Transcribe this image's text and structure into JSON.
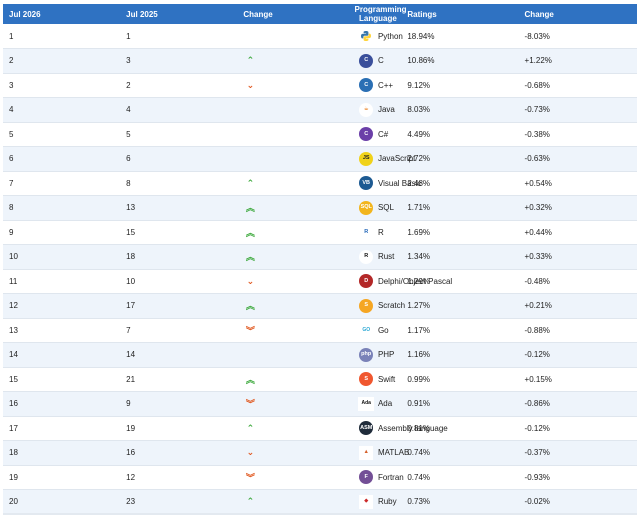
{
  "headers": {
    "rank_now": "Jul 2026",
    "rank_prev": "Jul 2025",
    "change": "Change",
    "language": "Programming Language",
    "ratings": "Ratings",
    "delta": "Change"
  },
  "rows": [
    {
      "rank": "1",
      "prev": "1",
      "trend": "none",
      "logo": "python-logo",
      "logo_text": "",
      "logo_color": "#3b73a8",
      "language": "Python",
      "rating": "18.94%",
      "delta": "-8.03%"
    },
    {
      "rank": "2",
      "prev": "3",
      "trend": "up",
      "logo": "c-logo",
      "logo_text": "C",
      "logo_color": "#3a4f9b",
      "language": "C",
      "rating": "10.86%",
      "delta": "+1.22%"
    },
    {
      "rank": "3",
      "prev": "2",
      "trend": "down",
      "logo": "cpp-logo",
      "logo_text": "C",
      "logo_color": "#2a6fb4",
      "language": "C++",
      "rating": "9.12%",
      "delta": "-0.68%"
    },
    {
      "rank": "4",
      "prev": "4",
      "trend": "none",
      "logo": "java-logo",
      "logo_text": "☕",
      "logo_color": "#ffffff",
      "language": "Java",
      "rating": "8.03%",
      "delta": "-0.73%"
    },
    {
      "rank": "5",
      "prev": "5",
      "trend": "none",
      "logo": "csharp-logo",
      "logo_text": "C",
      "logo_color": "#6b3fa8",
      "language": "C#",
      "rating": "4.49%",
      "delta": "-0.38%"
    },
    {
      "rank": "6",
      "prev": "6",
      "trend": "none",
      "logo": "javascript-logo",
      "logo_text": "JS",
      "logo_color": "#f0d21a",
      "language": "JavaScript",
      "rating": "2.72%",
      "delta": "-0.63%"
    },
    {
      "rank": "7",
      "prev": "8",
      "trend": "up",
      "logo": "visual-basic-logo",
      "logo_text": "VB",
      "logo_color": "#1d5a92",
      "language": "Visual Basic",
      "rating": "2.48%",
      "delta": "+0.54%"
    },
    {
      "rank": "8",
      "prev": "13",
      "trend": "double-up",
      "logo": "sql-logo",
      "logo_text": "SQL",
      "logo_color": "#f2b51d",
      "language": "SQL",
      "rating": "1.71%",
      "delta": "+0.32%"
    },
    {
      "rank": "9",
      "prev": "15",
      "trend": "double-up",
      "logo": "r-logo",
      "logo_text": "R",
      "logo_color": "#6f7d91",
      "language": "R",
      "rating": "1.69%",
      "delta": "+0.44%"
    },
    {
      "rank": "10",
      "prev": "18",
      "trend": "double-up",
      "logo": "rust-logo",
      "logo_text": "R",
      "logo_color": "#111111",
      "language": "Rust",
      "rating": "1.34%",
      "delta": "+0.33%"
    },
    {
      "rank": "11",
      "prev": "10",
      "trend": "down",
      "logo": "delphi-logo",
      "logo_text": "D",
      "logo_color": "#b32828",
      "language": "Delphi/Object Pascal",
      "rating": "1.29%",
      "delta": "-0.48%"
    },
    {
      "rank": "12",
      "prev": "17",
      "trend": "double-up",
      "logo": "scratch-logo",
      "logo_text": "S",
      "logo_color": "#f5a623",
      "language": "Scratch",
      "rating": "1.27%",
      "delta": "+0.21%"
    },
    {
      "rank": "13",
      "prev": "7",
      "trend": "double-down",
      "logo": "go-logo",
      "logo_text": "GO",
      "logo_color": "#ffffff",
      "language": "Go",
      "rating": "1.17%",
      "delta": "-0.88%"
    },
    {
      "rank": "14",
      "prev": "14",
      "trend": "none",
      "logo": "php-logo",
      "logo_text": "php",
      "logo_color": "#7a82b8",
      "language": "PHP",
      "rating": "1.16%",
      "delta": "-0.12%"
    },
    {
      "rank": "15",
      "prev": "21",
      "trend": "double-up",
      "logo": "swift-logo",
      "logo_text": "S",
      "logo_color": "#f0572f",
      "language": "Swift",
      "rating": "0.99%",
      "delta": "+0.15%"
    },
    {
      "rank": "16",
      "prev": "9",
      "trend": "double-down",
      "logo": "ada-logo",
      "logo_text": "Ada",
      "logo_color": "#ffffff",
      "language": "Ada",
      "rating": "0.91%",
      "delta": "-0.86%"
    },
    {
      "rank": "17",
      "prev": "19",
      "trend": "up",
      "logo": "assembly-logo",
      "logo_text": "ASM",
      "logo_color": "#1f2b3a",
      "language": "Assembly language",
      "rating": "0.81%",
      "delta": "-0.12%"
    },
    {
      "rank": "18",
      "prev": "16",
      "trend": "down",
      "logo": "matlab-logo",
      "logo_text": "▲",
      "logo_color": "#ffffff",
      "language": "MATLAB",
      "rating": "0.74%",
      "delta": "-0.37%"
    },
    {
      "rank": "19",
      "prev": "12",
      "trend": "double-down",
      "logo": "fortran-logo",
      "logo_text": "F",
      "logo_color": "#734f96",
      "language": "Fortran",
      "rating": "0.74%",
      "delta": "-0.93%"
    },
    {
      "rank": "20",
      "prev": "23",
      "trend": "up",
      "logo": "ruby-logo",
      "logo_text": "◆",
      "logo_color": "#ffffff",
      "language": "Ruby",
      "rating": "0.73%",
      "delta": "-0.02%"
    }
  ],
  "trend_glyphs": {
    "up": "⌃",
    "down": "⌄",
    "double-up": "︽",
    "double-down": "︾",
    "none": ""
  }
}
